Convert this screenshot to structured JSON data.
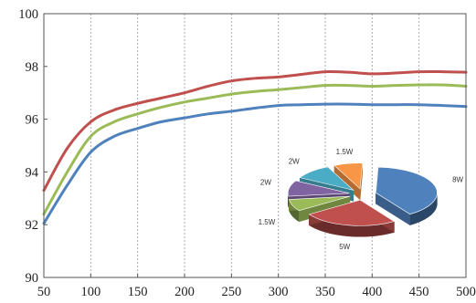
{
  "chart_data": [
    {
      "type": "line",
      "title": "",
      "xlabel": "",
      "ylabel": "",
      "xlim": [
        50,
        500
      ],
      "ylim": [
        90,
        100
      ],
      "x_ticks": [
        50,
        100,
        150,
        200,
        250,
        300,
        350,
        400,
        450,
        500
      ],
      "y_ticks": [
        90,
        92,
        94,
        96,
        98,
        100
      ],
      "grid": "vertical dashed lines only",
      "legend": "none",
      "series": [
        {
          "color": "#c0504d",
          "points": [
            [
              50,
              93.3
            ],
            [
              75,
              94.9
            ],
            [
              100,
              95.9
            ],
            [
              125,
              96.35
            ],
            [
              150,
              96.6
            ],
            [
              175,
              96.8
            ],
            [
              200,
              97.0
            ],
            [
              225,
              97.25
            ],
            [
              250,
              97.45
            ],
            [
              275,
              97.55
            ],
            [
              300,
              97.6
            ],
            [
              325,
              97.7
            ],
            [
              350,
              97.8
            ],
            [
              375,
              97.78
            ],
            [
              400,
              97.72
            ],
            [
              425,
              97.75
            ],
            [
              450,
              97.8
            ],
            [
              475,
              97.8
            ],
            [
              500,
              97.78
            ]
          ]
        },
        {
          "color": "#9bbb59",
          "points": [
            [
              50,
              92.4
            ],
            [
              75,
              94.0
            ],
            [
              100,
              95.35
            ],
            [
              125,
              95.9
            ],
            [
              150,
              96.2
            ],
            [
              175,
              96.45
            ],
            [
              200,
              96.65
            ],
            [
              225,
              96.8
            ],
            [
              250,
              96.95
            ],
            [
              275,
              97.05
            ],
            [
              300,
              97.12
            ],
            [
              325,
              97.2
            ],
            [
              350,
              97.28
            ],
            [
              375,
              97.28
            ],
            [
              400,
              97.25
            ],
            [
              425,
              97.28
            ],
            [
              450,
              97.3
            ],
            [
              475,
              97.3
            ],
            [
              500,
              97.25
            ]
          ]
        },
        {
          "color": "#4f81bd",
          "points": [
            [
              50,
              92.05
            ],
            [
              75,
              93.5
            ],
            [
              100,
              94.75
            ],
            [
              125,
              95.35
            ],
            [
              150,
              95.65
            ],
            [
              175,
              95.9
            ],
            [
              200,
              96.05
            ],
            [
              225,
              96.2
            ],
            [
              250,
              96.3
            ],
            [
              275,
              96.42
            ],
            [
              300,
              96.52
            ],
            [
              325,
              96.55
            ],
            [
              350,
              96.57
            ],
            [
              375,
              96.57
            ],
            [
              400,
              96.55
            ],
            [
              425,
              96.55
            ],
            [
              450,
              96.55
            ],
            [
              475,
              96.52
            ],
            [
              500,
              96.48
            ]
          ]
        }
      ]
    },
    {
      "type": "pie",
      "style": "3d exploded",
      "slices": [
        {
          "label": "8W",
          "value": 8,
          "color": "#4f81bd"
        },
        {
          "label": "5W",
          "value": 5,
          "color": "#c0504d"
        },
        {
          "label": "1.5W",
          "value": 1.5,
          "color": "#9bbb59"
        },
        {
          "label": "2W",
          "value": 2,
          "color": "#8064a2"
        },
        {
          "label": "2W",
          "value": 2,
          "color": "#4bacc6"
        },
        {
          "label": "1.5W",
          "value": 1.5,
          "color": "#f79646"
        }
      ]
    }
  ]
}
